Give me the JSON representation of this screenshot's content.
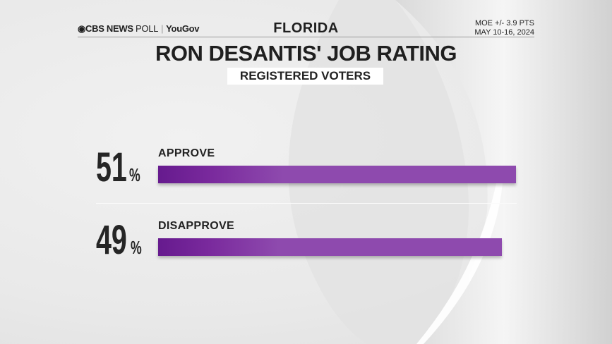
{
  "header": {
    "logo_brand": "CBS NEWS",
    "logo_poll": "POLL",
    "logo_partner": "YouGov",
    "state": "FLORIDA",
    "moe": "MOE +/- 3.9 PTS",
    "dates": "MAY 10-16, 2024"
  },
  "chart_data": {
    "type": "bar",
    "orientation": "horizontal",
    "title": "RON DESANTIS' JOB RATING",
    "subtitle": "REGISTERED VOTERS",
    "categories": [
      "APPROVE",
      "DISAPPROVE"
    ],
    "values": [
      51,
      49
    ],
    "value_labels": [
      "51",
      "49"
    ],
    "unit": "%",
    "xlim": [
      0,
      100
    ],
    "bar_color": "#8e4aae",
    "bar_color_start": "#661a8e"
  }
}
